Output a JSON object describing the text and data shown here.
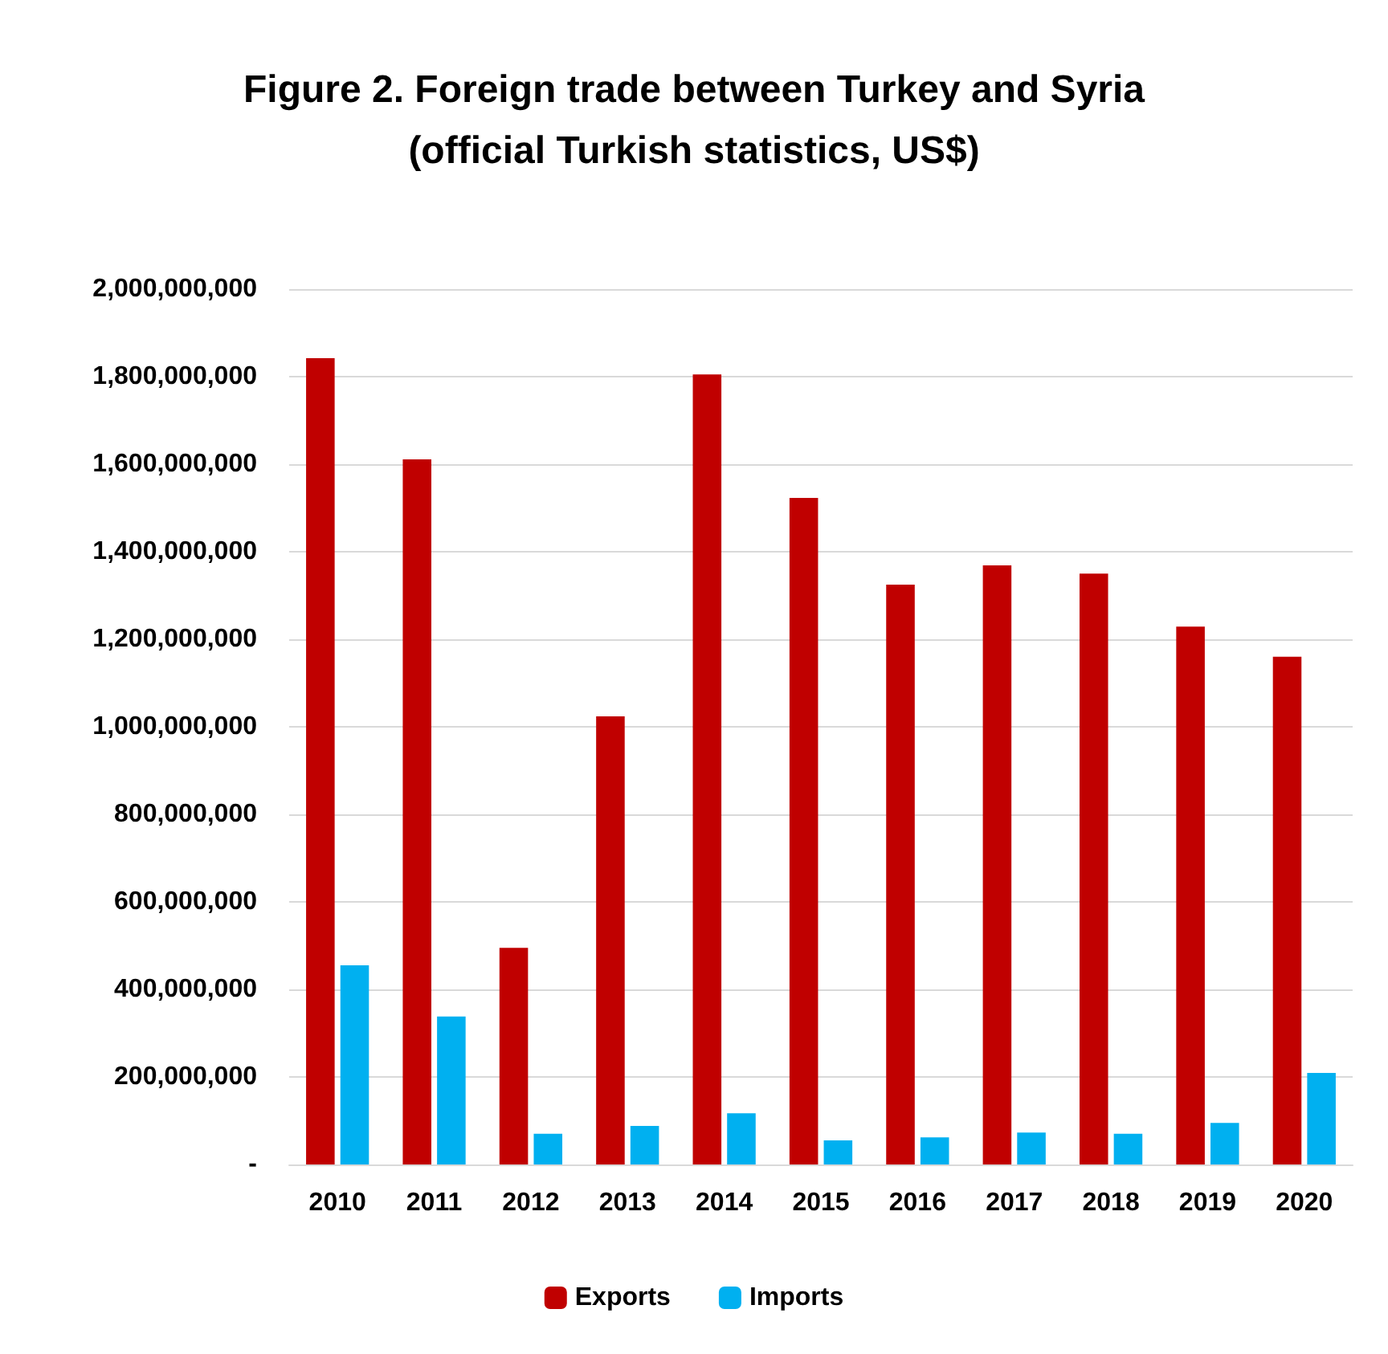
{
  "chart_data": {
    "type": "bar",
    "title": "Figure 2. Foreign trade between Turkey and Syria\n(official Turkish statistics, US$)",
    "categories": [
      "2010",
      "2011",
      "2012",
      "2013",
      "2014",
      "2015",
      "2016",
      "2017",
      "2018",
      "2019",
      "2020"
    ],
    "series": [
      {
        "name": "Exports",
        "color": "#c00000",
        "values": [
          1842000000,
          1611000000,
          495000000,
          1024000000,
          1805000000,
          1523000000,
          1325000000,
          1369000000,
          1350000000,
          1229000000,
          1160000000
        ]
      },
      {
        "name": "Imports",
        "color": "#00b0f0",
        "values": [
          455000000,
          338000000,
          70000000,
          88000000,
          117000000,
          55000000,
          62000000,
          73000000,
          70000000,
          95000000,
          209000000
        ]
      }
    ],
    "ylim": [
      0,
      2000000000
    ],
    "yticks": [
      {
        "value": 0,
        "label": "-"
      },
      {
        "value": 200000000,
        "label": "200,000,000"
      },
      {
        "value": 400000000,
        "label": "400,000,000"
      },
      {
        "value": 600000000,
        "label": "600,000,000"
      },
      {
        "value": 800000000,
        "label": "800,000,000"
      },
      {
        "value": 1000000000,
        "label": "1,000,000,000"
      },
      {
        "value": 1200000000,
        "label": "1,200,000,000"
      },
      {
        "value": 1400000000,
        "label": "1,400,000,000"
      },
      {
        "value": 1600000000,
        "label": "1,600,000,000"
      },
      {
        "value": 1800000000,
        "label": "1,800,000,000"
      },
      {
        "value": 2000000000,
        "label": "2,000,000,000"
      }
    ],
    "grid": "y",
    "legend": "bottom"
  }
}
